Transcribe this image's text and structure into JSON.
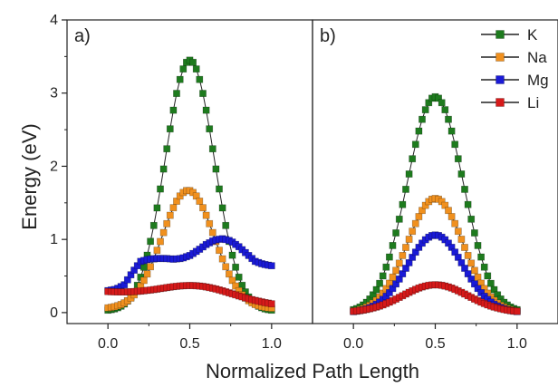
{
  "figure": {
    "ylabel": "Energy (eV)",
    "xlabel": "Normalized Path Length"
  },
  "legend": {
    "items": [
      {
        "name": "K",
        "color": "#1e7b1e"
      },
      {
        "name": "Na",
        "color": "#f0901e"
      },
      {
        "name": "Mg",
        "color": "#1a1ad6"
      },
      {
        "name": "Li",
        "color": "#d61a1a"
      }
    ],
    "placement": "top-right"
  },
  "chart_data": [
    {
      "type": "scatter",
      "panel_label": "a)",
      "xlim": [
        -0.25,
        1.25
      ],
      "ylim": [
        -0.15,
        4.0
      ],
      "xticks": [
        "0.0",
        "0.5",
        "1.0"
      ],
      "yticks": [
        "0",
        "1",
        "2",
        "3",
        "4"
      ],
      "series": [
        {
          "name": "K",
          "curve": "gauss",
          "base0": 0.02,
          "base1": 0.02,
          "peak": 3.45,
          "center": 0.5,
          "width": 0.15
        },
        {
          "name": "Na",
          "curve": "gauss",
          "base0": 0.05,
          "base1": 0.05,
          "peak": 1.67,
          "center": 0.49,
          "width": 0.16
        },
        {
          "name": "Mg",
          "curve": "points",
          "x": [
            0.0,
            0.05,
            0.1,
            0.15,
            0.2,
            0.25,
            0.3,
            0.35,
            0.4,
            0.45,
            0.5,
            0.55,
            0.6,
            0.65,
            0.7,
            0.75,
            0.8,
            0.85,
            0.9,
            0.95,
            1.0
          ],
          "y": [
            0.3,
            0.32,
            0.38,
            0.55,
            0.7,
            0.73,
            0.74,
            0.74,
            0.73,
            0.74,
            0.78,
            0.85,
            0.93,
            0.99,
            1.01,
            0.98,
            0.9,
            0.8,
            0.7,
            0.66,
            0.64
          ]
        },
        {
          "name": "Li",
          "curve": "gauss",
          "base0": 0.28,
          "base1": 0.1,
          "peak": 0.37,
          "center": 0.5,
          "width": 0.22
        }
      ]
    },
    {
      "type": "scatter",
      "panel_label": "b)",
      "xlim": [
        -0.25,
        1.25
      ],
      "ylim": [
        -0.15,
        4.0
      ],
      "xticks": [
        "0.0",
        "0.5",
        "1.0"
      ],
      "yticks": [],
      "series": [
        {
          "name": "K",
          "curve": "gauss",
          "base0": 0.0,
          "base1": 0.0,
          "peak": 2.95,
          "center": 0.5,
          "width": 0.17
        },
        {
          "name": "Na",
          "curve": "gauss",
          "base0": 0.0,
          "base1": 0.0,
          "peak": 1.56,
          "center": 0.5,
          "width": 0.17
        },
        {
          "name": "Mg",
          "curve": "gauss",
          "base0": 0.0,
          "base1": 0.0,
          "peak": 1.06,
          "center": 0.5,
          "width": 0.17
        },
        {
          "name": "Li",
          "curve": "gauss",
          "base0": 0.0,
          "base1": 0.0,
          "peak": 0.38,
          "center": 0.5,
          "width": 0.2
        }
      ]
    }
  ]
}
